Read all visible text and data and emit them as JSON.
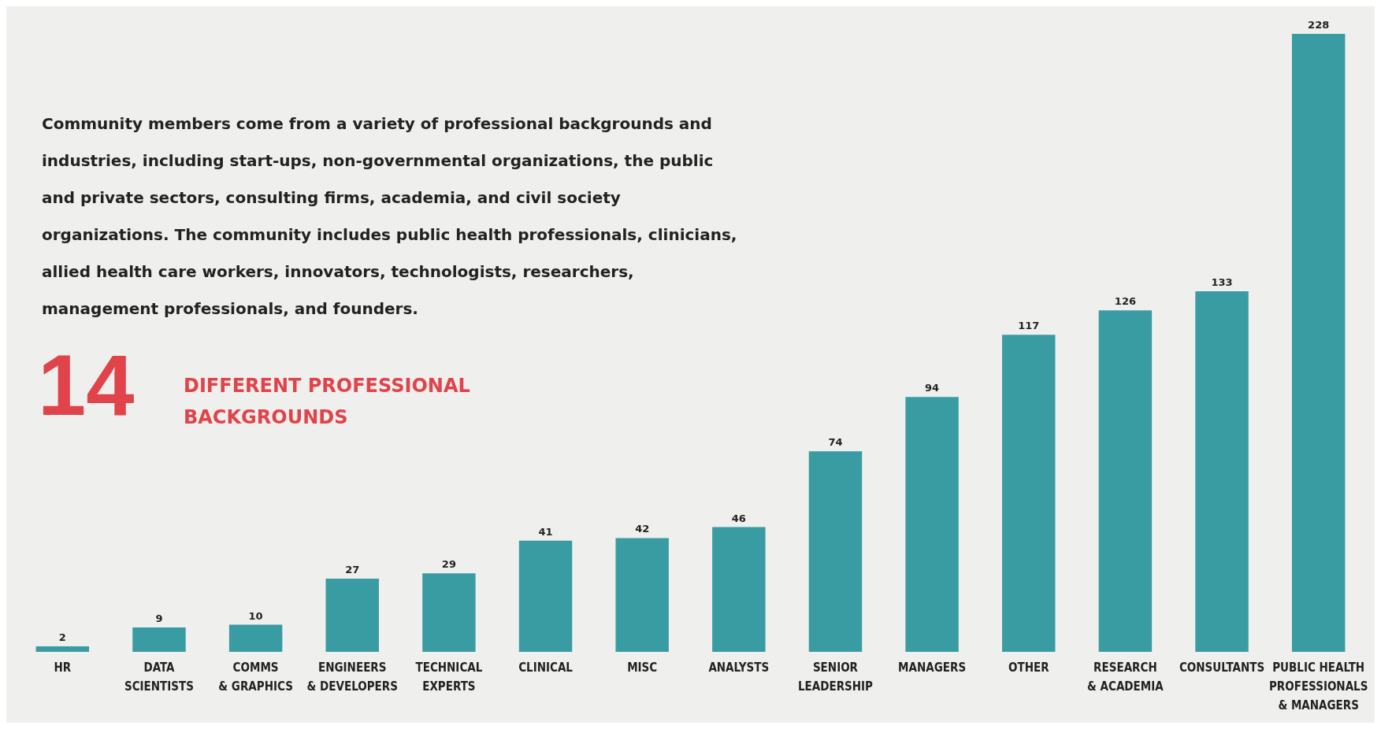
{
  "chart_data": {
    "type": "bar",
    "categories": [
      "HR",
      "DATA\nSCIENTISTS",
      "COMMS\n& GRAPHICS",
      "ENGINEERS\n& DEVELOPERS",
      "TECHNICAL\nEXPERTS",
      "CLINICAL",
      "MISC",
      "ANALYSTS",
      "SENIOR\nLEADERSHIP",
      "MANAGERS",
      "OTHER",
      "RESEARCH\n& ACADEMIA",
      "CONSULTANTS",
      "PUBLIC HEALTH\nPROFESSIONALS\n& MANAGERS"
    ],
    "values": [
      2,
      9,
      10,
      27,
      29,
      41,
      42,
      46,
      74,
      94,
      117,
      126,
      133,
      228
    ],
    "color": "#3a9ca3",
    "data_labels": true,
    "annotations": [
      "Community members come from a variety of professional backgrounds and industries, including start-ups, non-governmental organizations, the public and private sectors, consulting firms, academia, and civil society organizations. The community includes public health professionals, clinicians, allied health care workers, innovators, technologists, researchers, management professionals, and founders.",
      "14",
      "DIFFERENT PROFESSIONAL\nBACKGROUNDS"
    ]
  }
}
